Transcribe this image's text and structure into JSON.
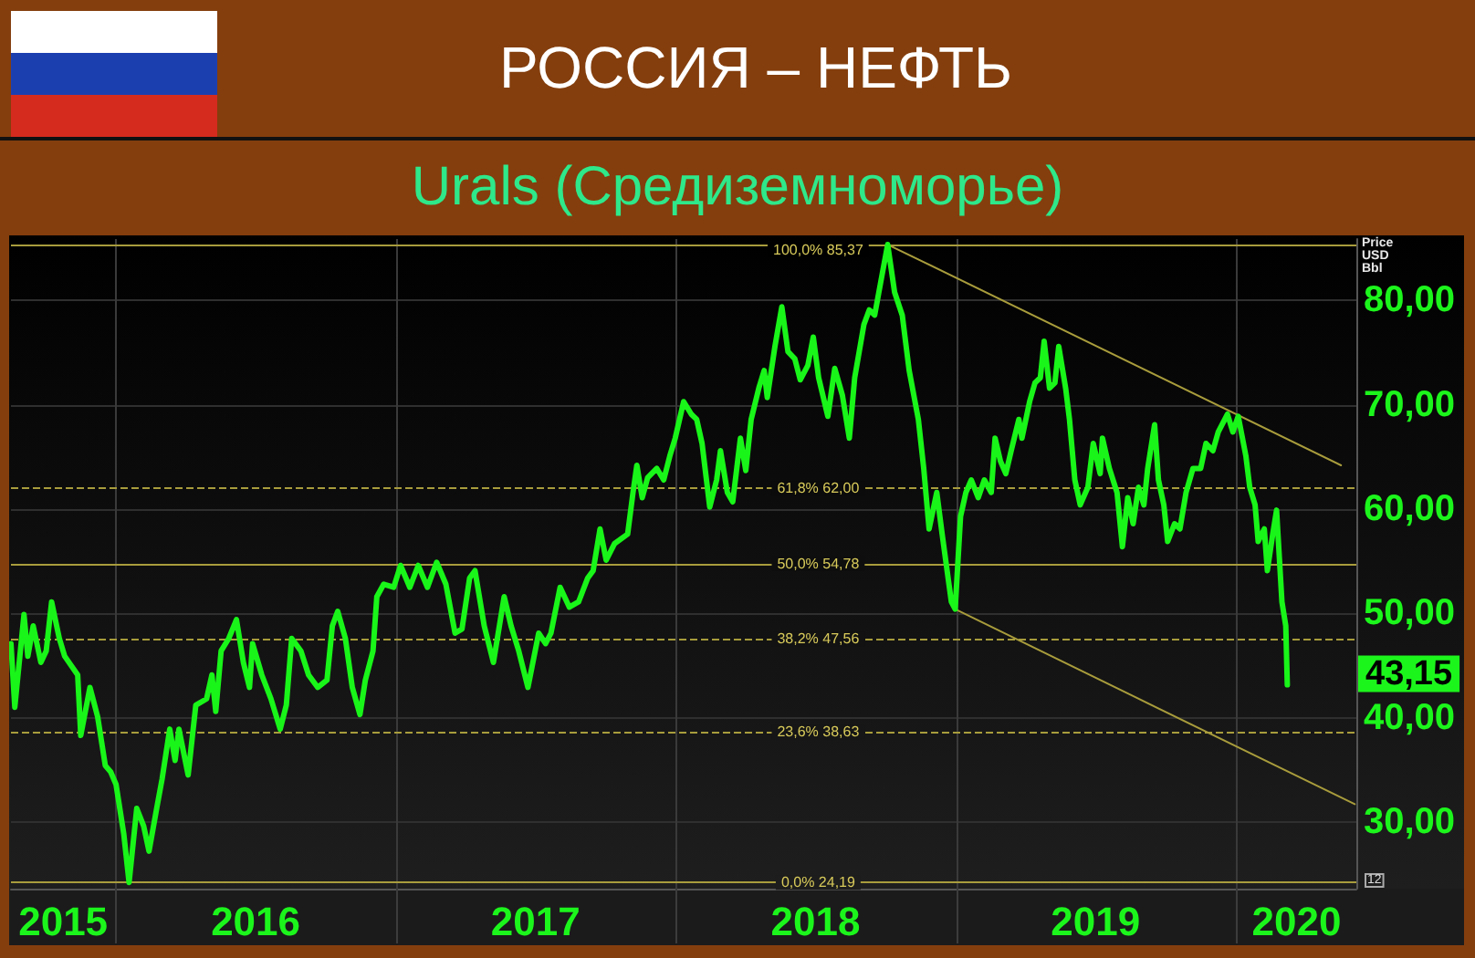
{
  "chart_data": {
    "type": "line",
    "title": "РОССИЯ – НЕФТЬ",
    "subtitle": "Urals (Средиземноморье)",
    "ylabel": "Price USD Bbl",
    "x": [
      "2015-08-17",
      "2015-08-22",
      "2015-09-03",
      "2015-09-08",
      "2015-09-15",
      "2015-09-25",
      "2015-10-02",
      "2015-10-09",
      "2015-10-19",
      "2015-10-26",
      "2015-11-12",
      "2015-11-16",
      "2015-11-28",
      "2015-12-08",
      "2015-12-18",
      "2015-12-25",
      "2016-01-01",
      "2016-01-11",
      "2016-01-18",
      "2016-01-28",
      "2016-02-06",
      "2016-02-13",
      "2016-02-23",
      "2016-03-01",
      "2016-03-11",
      "2016-03-18",
      "2016-03-23",
      "2016-04-04",
      "2016-04-14",
      "2016-04-28",
      "2016-05-05",
      "2016-05-10",
      "2016-05-17",
      "2016-05-27",
      "2016-06-06",
      "2016-06-15",
      "2016-06-23",
      "2016-06-27",
      "2016-07-09",
      "2016-07-21",
      "2016-08-02",
      "2016-08-10",
      "2016-08-17",
      "2016-08-29",
      "2016-09-08",
      "2016-09-20",
      "2016-10-02",
      "2016-10-09",
      "2016-10-16",
      "2016-10-26",
      "2016-11-04",
      "2016-11-14",
      "2016-11-21",
      "2016-12-01",
      "2016-12-06",
      "2016-12-15",
      "2016-12-28",
      "2017-01-06",
      "2017-01-18",
      "2017-01-29",
      "2017-02-10",
      "2017-02-22",
      "2017-03-06",
      "2017-03-18",
      "2017-03-27",
      "2017-04-06",
      "2017-04-13",
      "2017-04-25",
      "2017-05-07",
      "2017-05-21",
      "2017-05-30",
      "2017-06-09",
      "2017-06-21",
      "2017-07-05",
      "2017-07-14",
      "2017-07-21",
      "2017-08-02",
      "2017-08-14",
      "2017-08-26",
      "2017-09-07",
      "2017-09-14",
      "2017-09-23",
      "2017-10-01",
      "2017-10-12",
      "2017-10-29",
      "2017-11-05",
      "2017-11-10",
      "2017-11-17",
      "2017-11-24",
      "2017-12-06",
      "2017-12-15",
      "2017-12-23",
      "2017-12-30",
      "2018-01-10",
      "2018-01-20",
      "2018-01-27",
      "2018-02-03",
      "2018-02-13",
      "2018-02-22",
      "2018-02-27",
      "2018-03-08",
      "2018-03-15",
      "2018-03-25",
      "2018-04-01",
      "2018-04-08",
      "2018-04-18",
      "2018-04-25",
      "2018-04-29",
      "2018-05-09",
      "2018-05-18",
      "2018-05-26",
      "2018-06-04",
      "2018-06-11",
      "2018-06-21",
      "2018-06-28",
      "2018-07-05",
      "2018-07-17",
      "2018-07-26",
      "2018-08-05",
      "2018-08-14",
      "2018-08-21",
      "2018-09-02",
      "2018-09-09",
      "2018-09-16",
      "2018-09-26",
      "2018-10-03",
      "2018-10-12",
      "2018-10-22",
      "2018-10-31",
      "2018-11-12",
      "2018-11-19",
      "2018-11-26",
      "2018-12-06",
      "2018-12-13",
      "2018-12-25",
      "2018-12-30",
      "2019-01-06",
      "2019-01-13",
      "2019-01-20",
      "2019-01-29",
      "2019-02-06",
      "2019-02-15",
      "2019-02-20",
      "2019-02-27",
      "2019-03-06",
      "2019-03-13",
      "2019-03-23",
      "2019-03-27",
      "2019-04-06",
      "2019-04-13",
      "2019-04-20",
      "2019-04-25",
      "2019-05-02",
      "2019-05-09",
      "2019-05-14",
      "2019-05-23",
      "2019-05-28",
      "2019-06-04",
      "2019-06-11",
      "2019-06-21",
      "2019-06-28",
      "2019-07-07",
      "2019-07-10",
      "2019-07-19",
      "2019-07-29",
      "2019-08-05",
      "2019-08-12",
      "2019-08-19",
      "2019-08-26",
      "2019-09-02",
      "2019-09-07",
      "2019-09-16",
      "2019-09-21",
      "2019-09-28",
      "2019-10-03",
      "2019-10-12",
      "2019-10-19",
      "2019-10-27",
      "2019-11-05",
      "2019-11-15",
      "2019-11-22",
      "2019-12-01",
      "2019-12-08",
      "2019-12-20",
      "2019-12-27",
      "2020-01-03",
      "2020-01-13",
      "2020-01-18",
      "2020-01-25",
      "2020-01-29",
      "2020-02-06",
      "2020-02-10",
      "2020-02-17",
      "2020-02-22",
      "2020-02-29",
      "2020-03-05",
      "2020-03-07"
    ],
    "series": [
      {
        "color": "#19f519",
        "values": [
          47.1,
          41.0,
          49.9,
          45.9,
          48.8,
          45.3,
          46.4,
          51.1,
          47.6,
          45.9,
          44.1,
          38.3,
          42.9,
          40.1,
          35.4,
          34.8,
          33.6,
          28.9,
          24.19,
          31.3,
          29.6,
          27.2,
          31.3,
          34.1,
          38.9,
          35.9,
          38.9,
          34.5,
          41.2,
          41.8,
          44.1,
          40.6,
          46.4,
          47.6,
          49.4,
          45.3,
          42.9,
          47.1,
          44.1,
          41.8,
          38.9,
          41.2,
          47.6,
          46.4,
          44.1,
          42.9,
          43.6,
          48.8,
          50.2,
          47.6,
          42.9,
          40.3,
          43.6,
          46.4,
          51.6,
          52.8,
          52.5,
          54.6,
          52.5,
          54.6,
          52.5,
          54.9,
          52.8,
          48.1,
          48.5,
          53.4,
          54.1,
          48.8,
          45.3,
          51.6,
          48.8,
          46.4,
          42.9,
          48.1,
          47.1,
          48.1,
          52.5,
          50.6,
          51.1,
          53.4,
          54.1,
          58.1,
          55.1,
          56.7,
          57.6,
          61.6,
          64.2,
          61.1,
          63.0,
          63.9,
          62.8,
          65.1,
          66.8,
          70.3,
          69.1,
          68.6,
          66.3,
          60.2,
          62.8,
          65.6,
          61.6,
          60.7,
          66.8,
          63.7,
          68.6,
          71.6,
          73.3,
          70.7,
          75.6,
          79.4,
          75.1,
          74.4,
          72.4,
          73.8,
          76.5,
          72.6,
          68.9,
          73.5,
          70.9,
          66.8,
          72.6,
          77.7,
          79.1,
          78.6,
          82.6,
          85.37,
          80.8,
          78.6,
          73.3,
          68.6,
          63.9,
          58.1,
          61.6,
          57.6,
          51.1,
          50.4,
          59.3,
          61.6,
          62.8,
          61.1,
          62.8,
          61.6,
          66.8,
          64.6,
          63.4,
          65.6,
          68.6,
          66.8,
          70.3,
          72.1,
          72.6,
          76.1,
          71.6,
          72.1,
          75.6,
          71.6,
          68.6,
          62.8,
          60.4,
          62.1,
          66.3,
          63.4,
          66.8,
          63.9,
          61.6,
          56.4,
          61.1,
          58.6,
          62.1,
          60.4,
          63.9,
          68.1,
          62.8,
          60.4,
          56.9,
          58.6,
          58.1,
          61.6,
          63.9,
          63.9,
          66.3,
          65.6,
          67.4,
          69.1,
          67.4,
          68.9,
          65.1,
          62.1,
          60.4,
          56.9,
          58.1,
          54.1,
          57.6,
          59.9,
          51.1,
          48.8,
          43.15
        ]
      },
      {
        "type": "line",
        "color": "#a89c3c",
        "x": [
          "2018-10-03",
          "2020-05-16"
        ],
        "values": [
          85.37,
          64.2
        ]
      },
      {
        "type": "line",
        "color": "#a89c3c",
        "x": [
          "2018-12-30",
          "2020-06-03"
        ],
        "values": [
          50.4,
          31.7
        ]
      }
    ],
    "xlim": [
      "2015-08-17",
      "2020-06-05"
    ],
    "xticks": [
      {
        "value": "2015-10-24",
        "label": "2015"
      },
      {
        "value": "2016-01-01",
        "label": null
      },
      {
        "value": "2016-07-01",
        "label": "2016"
      },
      {
        "value": "2017-01-01",
        "label": null
      },
      {
        "value": "2017-07-01",
        "label": "2017"
      },
      {
        "value": "2018-01-01",
        "label": null
      },
      {
        "value": "2018-07-01",
        "label": "2018"
      },
      {
        "value": "2019-01-01",
        "label": null
      },
      {
        "value": "2019-07-01",
        "label": "2019"
      },
      {
        "value": "2020-01-01",
        "label": null
      },
      {
        "value": "2020-03-19",
        "label": "2020"
      }
    ],
    "ylim": [
      23.6,
      85.9
    ],
    "yticks": [
      {
        "value": 30,
        "label": "30,00"
      },
      {
        "value": 40,
        "label": "40,00"
      },
      {
        "value": 50,
        "label": "50,00"
      },
      {
        "value": 60,
        "label": "60,00"
      },
      {
        "value": 70,
        "label": "70,00"
      },
      {
        "value": 80,
        "label": "80,00"
      }
    ],
    "grid": true,
    "ref_lines": [
      {
        "axis": "y",
        "value": 85.37,
        "label": "100,0% 85,37",
        "color": "#a89c3c",
        "line_style": "solid"
      },
      {
        "axis": "y",
        "value": 62.0,
        "label": "61,8% 62,00",
        "color": "#a89c3c",
        "line_style": "dashed"
      },
      {
        "axis": "y",
        "value": 54.78,
        "label": "50,0% 54,78",
        "color": "#a89c3c",
        "line_style": "solid"
      },
      {
        "axis": "y",
        "value": 47.56,
        "label": "38,2% 47,56",
        "color": "#a89c3c",
        "line_style": "dashed"
      },
      {
        "axis": "y",
        "value": 38.63,
        "label": "23,6% 38,63",
        "color": "#a89c3c",
        "line_style": "dashed"
      },
      {
        "axis": "y",
        "value": 24.19,
        "label": "0,0% 24,19",
        "color": "#a89c3c",
        "line_style": "solid"
      }
    ],
    "annotations": [
      {
        "text": "43,15",
        "x": "2020-03-07",
        "y": 43.15
      },
      "12"
    ]
  }
}
